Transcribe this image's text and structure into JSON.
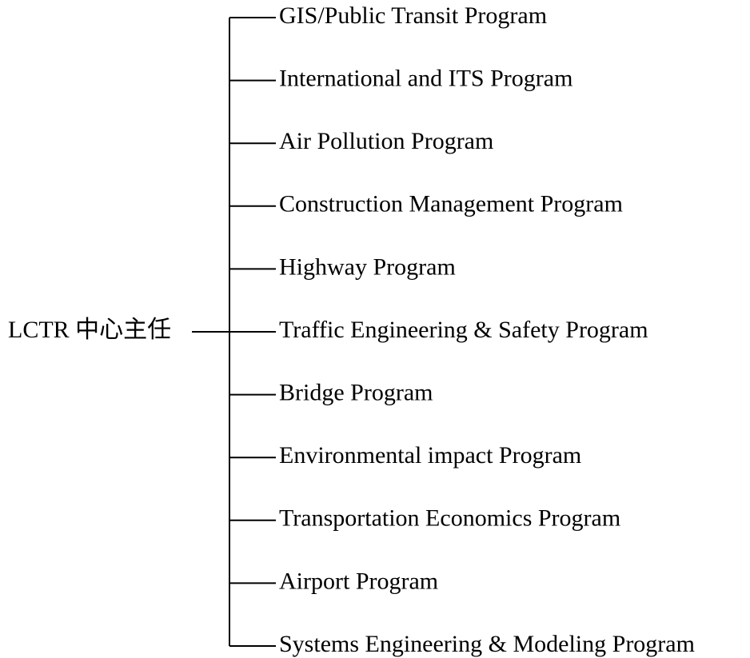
{
  "root": {
    "label": "LCTR 中心主任"
  },
  "nodes": [
    {
      "label": "GIS/Public Transit Program"
    },
    {
      "label": "International and ITS Program"
    },
    {
      "label": "Air Pollution Program"
    },
    {
      "label": "Construction Management Program"
    },
    {
      "label": "Highway Program"
    },
    {
      "label": "Traffic Engineering & Safety Program"
    },
    {
      "label": "Bridge Program"
    },
    {
      "label": "Environmental impact Program"
    },
    {
      "label": "Transportation Economics Program"
    },
    {
      "label": "Airport Program"
    },
    {
      "label": "Systems Engineering & Modeling Program"
    }
  ]
}
